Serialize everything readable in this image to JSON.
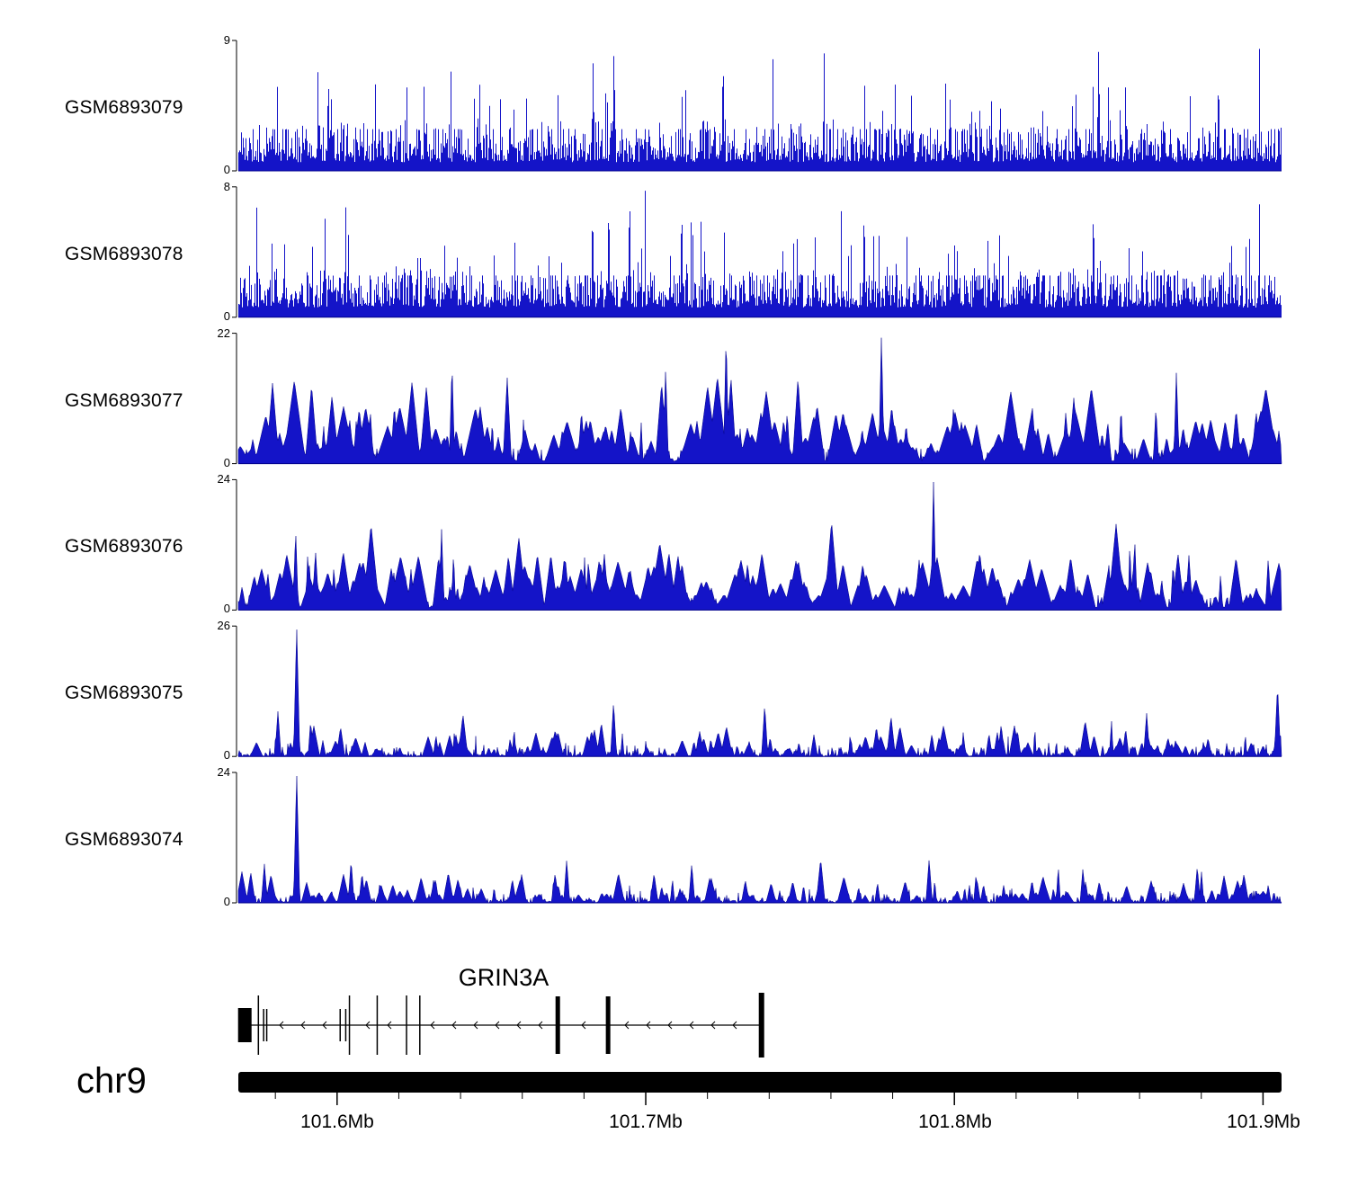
{
  "labels": {
    "zero": "0"
  },
  "colors": {
    "signal": "#1414c8",
    "signal_dark": "#00008b",
    "axis": "#000000",
    "gene": "#000000"
  },
  "chart_data": {
    "type": "area",
    "description": "Genome browser read-coverage tracks over chr9 101.57-101.91 Mb spanning the GRIN3A gene",
    "x_range_mb": [
      101.568,
      101.906
    ],
    "tracks": [
      {
        "id": "GSM6893079",
        "ymax": 9,
        "ylim": [
          0,
          9
        ],
        "type": "dense",
        "seed": 11,
        "spikes": [
          {
            "x": 0.36,
            "h": 1.0
          },
          {
            "x": 0.825,
            "h": 1.0
          },
          {
            "x": 0.086,
            "h": 0.75
          },
          {
            "x": 0.34,
            "h": 0.85
          },
          {
            "x": 0.94,
            "h": 0.75
          }
        ]
      },
      {
        "id": "GSM6893078",
        "ymax": 8,
        "ylim": [
          0,
          8
        ],
        "type": "dense",
        "seed": 22,
        "spikes": [
          {
            "x": 0.375,
            "h": 1.0
          },
          {
            "x": 0.355,
            "h": 0.93
          },
          {
            "x": 0.425,
            "h": 0.9
          },
          {
            "x": 0.6,
            "h": 0.88
          },
          {
            "x": 0.82,
            "h": 0.88
          }
        ]
      },
      {
        "id": "GSM6893077",
        "ymax": 22,
        "ylim": [
          0,
          22
        ],
        "type": "peaks",
        "seed": 33,
        "spikes": [
          {
            "x": 0.468,
            "h": 1.0
          },
          {
            "x": 0.617,
            "h": 1.0
          },
          {
            "x": 0.205,
            "h": 0.78
          },
          {
            "x": 0.41,
            "h": 0.75
          },
          {
            "x": 0.9,
            "h": 0.72
          }
        ]
      },
      {
        "id": "GSM6893076",
        "ymax": 24,
        "ylim": [
          0,
          24
        ],
        "type": "peaks",
        "seed": 44,
        "spikes": [
          {
            "x": 0.667,
            "h": 1.0
          },
          {
            "x": 0.055,
            "h": 0.62
          },
          {
            "x": 0.195,
            "h": 0.62
          },
          {
            "x": 0.86,
            "h": 0.55
          }
        ]
      },
      {
        "id": "GSM6893075",
        "ymax": 26,
        "ylim": [
          0,
          26
        ],
        "type": "sparse",
        "seed": 55,
        "spikes": [
          {
            "x": 0.056,
            "h": 1.0
          },
          {
            "x": 0.038,
            "h": 0.35
          },
          {
            "x": 0.36,
            "h": 0.42
          },
          {
            "x": 0.505,
            "h": 0.4
          },
          {
            "x": 0.997,
            "h": 0.55
          }
        ]
      },
      {
        "id": "GSM6893074",
        "ymax": 24,
        "ylim": [
          0,
          24
        ],
        "type": "sparse",
        "seed": 66,
        "spikes": [
          {
            "x": 0.056,
            "h": 1.0
          },
          {
            "x": 0.025,
            "h": 0.3
          },
          {
            "x": 0.315,
            "h": 0.33
          },
          {
            "x": 0.435,
            "h": 0.3
          },
          {
            "x": 0.92,
            "h": 0.28
          }
        ]
      }
    ],
    "gene": {
      "name": "GRIN3A",
      "strand": "-",
      "start_mb": 101.568,
      "end_mb": 101.738,
      "exons": [
        {
          "mb": 101.5685,
          "type": "box"
        },
        {
          "mb": 101.5745,
          "type": "tall"
        },
        {
          "mb": 101.5762,
          "type": "thin"
        },
        {
          "mb": 101.5772,
          "type": "thin"
        },
        {
          "mb": 101.601,
          "type": "thin"
        },
        {
          "mb": 101.6028,
          "type": "thin"
        },
        {
          "mb": 101.604,
          "type": "tall"
        },
        {
          "mb": 101.613,
          "type": "tall"
        },
        {
          "mb": 101.6225,
          "type": "tall"
        },
        {
          "mb": 101.6268,
          "type": "tall"
        },
        {
          "mb": 101.6715,
          "type": "thick"
        },
        {
          "mb": 101.6878,
          "type": "thick"
        },
        {
          "mb": 101.7375,
          "type": "thick-tall"
        }
      ]
    },
    "x_axis": {
      "chrom": "chr9",
      "start_mb": 101.568,
      "end_mb": 101.906,
      "minor_step_mb": 0.02,
      "ticks": [
        {
          "mb": 101.6,
          "label": "101.6Mb"
        },
        {
          "mb": 101.7,
          "label": "101.7Mb"
        },
        {
          "mb": 101.8,
          "label": "101.8Mb"
        },
        {
          "mb": 101.9,
          "label": "101.9Mb"
        }
      ]
    }
  }
}
